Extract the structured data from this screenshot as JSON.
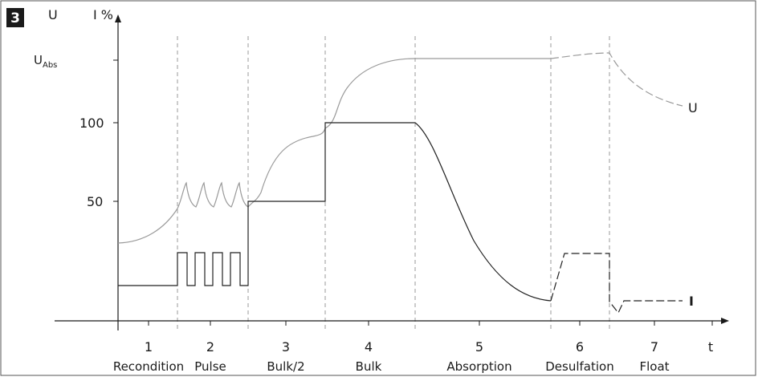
{
  "figure": {
    "number": "3",
    "voltage_axis_label": "U",
    "current_axis_label": "I %",
    "time_axis_label": "t",
    "u_abs_label": "U",
    "u_abs_subscript": "Abs",
    "y_ticks": [
      "100",
      "50"
    ],
    "curve_labels": {
      "voltage": "U",
      "current": "I"
    },
    "phases": [
      {
        "number": "1",
        "name": "Recondition"
      },
      {
        "number": "2",
        "name": "Pulse"
      },
      {
        "number": "3",
        "name": "Bulk/2"
      },
      {
        "number": "4",
        "name": "Bulk"
      },
      {
        "number": "5",
        "name": "Absorption"
      },
      {
        "number": "6",
        "name": "Desulfation"
      },
      {
        "number": "7",
        "name": "Float"
      }
    ],
    "colors": {
      "badge": "#1a1a1a",
      "current_line": "#222222",
      "voltage_line": "#9a9a9a",
      "divider": "#9a9a9a",
      "frame": "#555555"
    }
  }
}
